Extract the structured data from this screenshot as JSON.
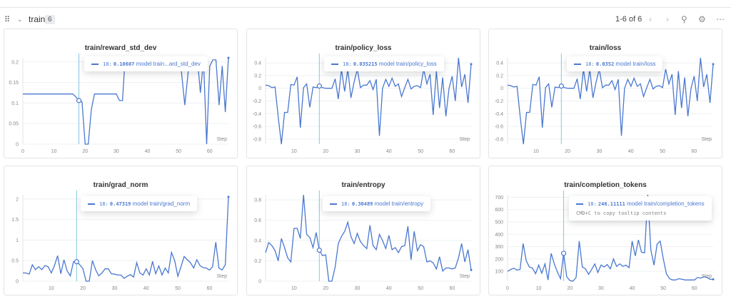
{
  "header": {
    "section": "train",
    "count": "6",
    "pager": "1-6 of 6"
  },
  "panels": [
    {
      "title": "train/reward_std_dev",
      "tooltip": {
        "step": "18:",
        "value": "0.10607",
        "label": "model train...ard_std_dev"
      },
      "xlim": [
        0,
        66
      ],
      "ylim": [
        0,
        0.21
      ],
      "yticks": [
        0,
        0.05,
        0.1,
        0.15,
        0.2
      ],
      "yticklabels": [
        "0",
        "0.05",
        "0.1",
        "0.15",
        "0.2"
      ],
      "xticks": [
        0,
        10,
        20,
        30,
        40,
        50,
        60
      ],
      "xstart": 0,
      "hover": 18,
      "values": [
        0.122,
        0.122,
        0.122,
        0.122,
        0.122,
        0.122,
        0.122,
        0.122,
        0.122,
        0.122,
        0.122,
        0.122,
        0.122,
        0.122,
        0.122,
        0.122,
        0.122,
        0.115,
        0.10607,
        0.103,
        0,
        0,
        0.085,
        0.122,
        0.122,
        0.122,
        0.122,
        0.122,
        0.122,
        0.122,
        0.122,
        0.106,
        0.106,
        0.23,
        0.23,
        0.23,
        0.23,
        0.23,
        0.23,
        0.23,
        0.23,
        0.23,
        0.23,
        0.23,
        0.23,
        0.23,
        0.23,
        0.23,
        0.23,
        0.23,
        0.23,
        0.17,
        0.095,
        0.17,
        0.23,
        0.23,
        0.21,
        0.125,
        0.205,
        0,
        0.19,
        0.205,
        0.205,
        0.095,
        0.19,
        0.078,
        0.21
      ]
    },
    {
      "title": "train/policy_loss",
      "tooltip": {
        "step": "18:",
        "value": "0.035215",
        "label": "model train/policy_loss"
      },
      "xlim": [
        1,
        66
      ],
      "ylim": [
        -0.88,
        0.48
      ],
      "yticks": [
        -0.8,
        -0.6,
        -0.4,
        -0.2,
        0,
        0.2,
        0.4
      ],
      "yticklabels": [
        "-0.8",
        "-0.6",
        "-0.4",
        "-0.2",
        "0",
        "0.2",
        "0.4"
      ],
      "xticks": [
        10,
        20,
        30,
        40,
        50,
        60
      ],
      "xstart": 1,
      "hover": 18,
      "values": [
        0.05,
        0.04,
        0.01,
        0.02,
        -0.45,
        -0.88,
        -0.38,
        -0.38,
        0.06,
        0.05,
        0.18,
        -0.62,
        0.01,
        0.07,
        -0.3,
        0.02,
        0.01,
        0.035,
        0.01,
        0,
        0,
        0,
        0.15,
        -0.17,
        0.3,
        -0.05,
        0.3,
        -0.15,
        0.1,
        0.3,
        0.01,
        0.05,
        0.05,
        0.12,
        -0.02,
        0.14,
        -0.75,
        0,
        0.14,
        0.03,
        0.16,
        0.03,
        0.07,
        -0.13,
        0.01,
        0.14,
        -0.01,
        0.03,
        0.04,
        0.01,
        0.3,
        0.07,
        0.22,
        -0.42,
        0.27,
        -0.31,
        0.17,
        -0.44,
        0,
        0.19,
        -0.2,
        0.48,
        0.02,
        0.22,
        -0.23,
        0.38
      ]
    },
    {
      "title": "train/loss",
      "tooltip": {
        "step": "18:",
        "value": "0.0352",
        "label": "model train/loss"
      },
      "xlim": [
        1,
        66
      ],
      "ylim": [
        -0.88,
        0.48
      ],
      "yticks": [
        -0.8,
        -0.6,
        -0.4,
        -0.2,
        0,
        0.2,
        0.4
      ],
      "yticklabels": [
        "-0.8",
        "-0.6",
        "-0.4",
        "-0.2",
        "0",
        "0.2",
        "0.4"
      ],
      "xticks": [
        10,
        20,
        30,
        40,
        50,
        60
      ],
      "xstart": 1,
      "hover": 18,
      "values": [
        0.05,
        0.04,
        0.02,
        0.03,
        -0.45,
        -0.88,
        -0.38,
        -0.38,
        0.06,
        0.05,
        0.18,
        -0.62,
        0.01,
        0.07,
        -0.3,
        0.02,
        0.01,
        0.035,
        0.01,
        0,
        0,
        0,
        0.15,
        -0.17,
        0.3,
        -0.05,
        0.3,
        -0.15,
        0.1,
        0.3,
        0.01,
        0.05,
        0.05,
        0.12,
        -0.02,
        0.14,
        -0.75,
        0,
        0.14,
        0.03,
        0.16,
        0.03,
        0.07,
        -0.13,
        0.01,
        0.14,
        -0.01,
        0.03,
        0.04,
        0.01,
        0.3,
        0.07,
        0.22,
        -0.42,
        0.27,
        -0.31,
        0.17,
        -0.44,
        0,
        0.19,
        -0.2,
        0.48,
        0.02,
        0.22,
        -0.23,
        0.38
      ]
    },
    {
      "title": "train/grad_norm",
      "tooltip": {
        "step": "18:",
        "value": "0.47319",
        "label": "model train/grad_norm"
      },
      "xlim": [
        1,
        66
      ],
      "ylim": [
        0,
        2.1
      ],
      "yticks": [
        0,
        0.5,
        1,
        1.5,
        2
      ],
      "yticklabels": [
        "0",
        "0.5",
        "1",
        "1.5",
        "2"
      ],
      "xticks": [
        10,
        20,
        30,
        40,
        50,
        60
      ],
      "xstart": 1,
      "hover": 18,
      "values": [
        0.2,
        0.2,
        0.17,
        0.4,
        0.28,
        0.35,
        0.28,
        0.38,
        0.35,
        0.2,
        0.38,
        0.62,
        0.18,
        0.52,
        0.25,
        0.13,
        0.47,
        0.47319,
        0.4,
        0.3,
        0,
        0,
        0.5,
        0.28,
        0.13,
        0.2,
        0.3,
        0.3,
        0.18,
        0.17,
        0.15,
        0.15,
        0.07,
        0.12,
        0.16,
        0.1,
        0.45,
        0.2,
        0.15,
        0.3,
        0.15,
        0.48,
        0.18,
        0.37,
        0.15,
        0.32,
        0.2,
        0.7,
        0.5,
        0.12,
        0.35,
        0.6,
        0.52,
        0.45,
        0.32,
        0.52,
        0.38,
        0.33,
        0.32,
        0.27,
        0.35,
        0.95,
        0.32,
        0.27,
        0.4,
        2.05
      ]
    },
    {
      "title": "train/entropy",
      "tooltip": {
        "step": "18:",
        "value": "0.30489",
        "label": "model train/entropy"
      },
      "xlim": [
        1,
        66
      ],
      "ylim": [
        0,
        0.85
      ],
      "yticks": [
        0,
        0.2,
        0.4,
        0.6,
        0.8
      ],
      "yticklabels": [
        "0",
        "0.2",
        "0.4",
        "0.6",
        "0.8"
      ],
      "xticks": [
        10,
        20,
        30,
        40,
        50,
        60
      ],
      "xstart": 1,
      "hover": 18,
      "values": [
        0.28,
        0.38,
        0.35,
        0.3,
        0.2,
        0.42,
        0.33,
        0.23,
        0.19,
        0.52,
        0.52,
        0.42,
        0.85,
        0.46,
        0.43,
        0.33,
        0.48,
        0.30489,
        0.25,
        0.26,
        0,
        0,
        0.14,
        0.37,
        0.44,
        0.49,
        0.58,
        0.44,
        0.37,
        0.47,
        0.39,
        0.35,
        0.32,
        0.55,
        0.35,
        0.31,
        0.46,
        0.4,
        0.32,
        0.45,
        0.31,
        0.33,
        0.28,
        0.34,
        0.35,
        0.54,
        0.21,
        0.49,
        0.3,
        0.36,
        0.34,
        0.19,
        0.2,
        0.18,
        0.12,
        0.24,
        0.1,
        0.13,
        0.13,
        0.12,
        0.13,
        0.23,
        0.37,
        0.19,
        0.31,
        0.11
      ]
    },
    {
      "title": "train/completion_tokens",
      "tooltip": {
        "step": "18:",
        "value": "246.11111",
        "label": "model train/completion_tokens",
        "hint": "CMD+C to copy tooltip contents"
      },
      "xlim": [
        0,
        66
      ],
      "ylim": [
        20,
        720
      ],
      "yticks": [
        100,
        200,
        300,
        400,
        500,
        600,
        700
      ],
      "yticklabels": [
        "100",
        "200",
        "300",
        "400",
        "500",
        "600",
        "700"
      ],
      "xticks": [
        0,
        10,
        20,
        30,
        40,
        50,
        60
      ],
      "xstart": 0,
      "hover": 18,
      "values": [
        100,
        115,
        125,
        110,
        115,
        325,
        185,
        135,
        125,
        80,
        150,
        85,
        160,
        30,
        245,
        160,
        95,
        40,
        246.11111,
        55,
        25,
        20,
        50,
        345,
        135,
        120,
        75,
        115,
        160,
        90,
        150,
        135,
        155,
        120,
        200,
        140,
        160,
        140,
        150,
        130,
        345,
        225,
        355,
        255,
        250,
        720,
        275,
        150,
        320,
        345,
        200,
        80,
        40,
        30,
        30,
        40,
        35,
        30,
        30,
        30,
        30,
        50,
        45,
        55,
        50,
        35,
        35
      ]
    }
  ],
  "xlabel": "Step",
  "colors": {
    "line": "#4a78d0",
    "hover": "#7fcbe0",
    "grid": "#eef0f3"
  }
}
